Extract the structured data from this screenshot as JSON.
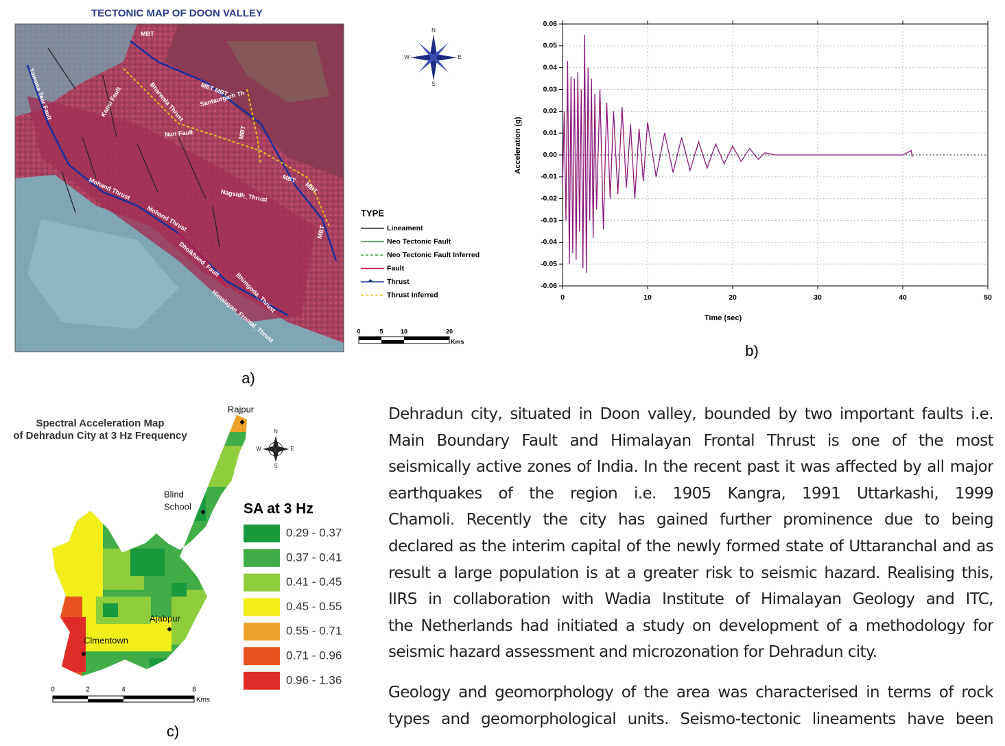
{
  "figure_a": {
    "title": "TECTONIC MAP OF DOON VALLEY",
    "map_labels": [
      "MBT",
      "MET MBT",
      "Santaurgarh Th",
      "Yamuna Tear Fault",
      "Kansi Fault",
      "Bharwala Thrust",
      "Nun Fault",
      "MBT",
      "MBT",
      "MBT",
      "MBT",
      "Mohand Thrust",
      "Mohand Thrust",
      "Nagsidh_Thrust",
      "Dholkhand_Fault",
      "Bhimgoda_Thrust",
      "Himalayan_Frontal_Thrust"
    ],
    "compass": [
      "N",
      "S",
      "E",
      "W"
    ],
    "legend_title": "TYPE",
    "legend": [
      {
        "label": "Lineament",
        "color": "#222222"
      },
      {
        "label": "Neo Tectonic Fault",
        "color": "#3aa33a"
      },
      {
        "label": "Neo Tectonic Fault Inferred",
        "color": "#3aa33a"
      },
      {
        "label": "Fault",
        "color": "#c0184a"
      },
      {
        "label": "Thrust",
        "color": "#1a2f9a"
      },
      {
        "label": "Thrust Inferred",
        "color": "#e6c21a"
      }
    ],
    "scale": [
      "0",
      "5",
      "10",
      "20",
      "Kms"
    ],
    "caption": "a)"
  },
  "chart_data": {
    "type": "line",
    "xlabel": "Time (sec)",
    "ylabel": "Acceleration (g)",
    "caption": "b)",
    "x": [
      0,
      0.2,
      0.4,
      0.6,
      0.8,
      1.0,
      1.2,
      1.4,
      1.6,
      1.8,
      2.0,
      2.2,
      2.4,
      2.6,
      2.8,
      3.0,
      3.2,
      3.4,
      3.6,
      3.8,
      4.0,
      4.4,
      4.8,
      5.2,
      5.6,
      6.0,
      6.5,
      7,
      7.5,
      8,
      8.5,
      9,
      9.5,
      10,
      11,
      12,
      13,
      14,
      15,
      16,
      17,
      18,
      19,
      20,
      21,
      22,
      23,
      23.8,
      25,
      30,
      35,
      40,
      41,
      41.1
    ],
    "series": [
      {
        "color": "#8b1a7a",
        "values": [
          -0.015,
          0.02,
          -0.03,
          0.043,
          -0.05,
          0.036,
          -0.045,
          0.035,
          -0.048,
          0.038,
          -0.035,
          0.03,
          -0.052,
          0.055,
          -0.054,
          0.04,
          -0.03,
          0.035,
          -0.038,
          0.028,
          -0.025,
          0.03,
          -0.034,
          0.024,
          -0.02,
          0.02,
          -0.018,
          0.022,
          -0.015,
          0.014,
          -0.02,
          0.012,
          -0.012,
          0.015,
          -0.01,
          0.01,
          -0.008,
          0.008,
          -0.007,
          0.006,
          -0.006,
          0.005,
          -0.004,
          0.004,
          -0.003,
          0.003,
          -0.002,
          0.001,
          0,
          0,
          0,
          0,
          0.002,
          -0.001
        ]
      }
    ],
    "xlim": [
      0,
      50
    ],
    "xticks": [
      0,
      10,
      20,
      30,
      40,
      50
    ],
    "ylim": [
      -0.06,
      0.06
    ],
    "yticks": [
      -0.06,
      -0.05,
      -0.04,
      -0.03,
      -0.02,
      -0.01,
      {
        "value": 0,
        "label": "0.00"
      },
      0.01,
      0.02,
      0.03,
      0.04,
      0.05,
      0.06
    ],
    "grid": true
  },
  "figure_c": {
    "title": [
      "Spectral Acceleration Map",
      "of Dehradun City at 3 Hz Frequency"
    ],
    "places": [
      "Rajpur",
      "Blind",
      "School",
      "Ajabpur",
      "Clmentown"
    ],
    "compass": [
      "N",
      "S",
      "E",
      "W"
    ],
    "legend_title": "SA at 3 Hz",
    "legend": [
      {
        "label": "0.29 - 0.37",
        "color": "#1a9a3f"
      },
      {
        "label": "0.37 - 0.41",
        "color": "#40ad47"
      },
      {
        "label": "0.41 - 0.45",
        "color": "#8fcd3c"
      },
      {
        "label": "0.45 - 0.55",
        "color": "#f1ee1a"
      },
      {
        "label": "0.55 - 0.71",
        "color": "#eda22a"
      },
      {
        "label": "0.71 - 0.96",
        "color": "#e8531f"
      },
      {
        "label": "0.96 - 1.36",
        "color": "#e02c27"
      }
    ],
    "scale": [
      "0",
      "2",
      "4",
      "8",
      "Kms"
    ],
    "caption": "c)"
  },
  "body": {
    "paragraphs": [
      [
        "Dehradun city, situated in Doon valley, bounded by two important faults i.e.",
        "Main Boundary Fault and Himalayan Frontal Thrust is one of the most",
        "seismically active zones of India. In the recent past it was affected by all major",
        "earthquakes of the region i.e. 1905 Kangra, 1991 Uttarkashi, 1999",
        "Chamoli. Recently the city has gained further prominence due to being",
        "declared as the interim capital of the newly formed state of Uttaranchal and as",
        "result a large population is at a greater risk to seismic hazard. Realising this,",
        "IIRS in collaboration with Wadia Institute of Himalayan Geology and ITC,",
        "the Netherlands had initiated a study on development of a methodology for",
        "seismic hazard assessment and microzonation for Dehradun city."
      ],
      [
        "Geology and geomorphology of the area was characterised in terms of rock",
        "types and geomorphological units. Seismo-tectonic lineaments have been"
      ]
    ]
  }
}
